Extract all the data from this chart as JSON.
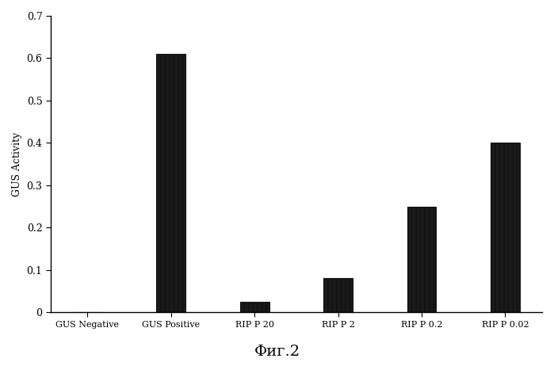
{
  "categories": [
    "GUS Negative",
    "GUS Positive",
    "RIP P 20",
    "RIP P 2",
    "RIP P 0.2",
    "RIP P 0.02"
  ],
  "values": [
    0.0,
    0.61,
    0.025,
    0.08,
    0.25,
    0.4
  ],
  "bar_color": "#111111",
  "ylabel": "GUS Activity",
  "ylim": [
    0,
    0.7
  ],
  "yticks": [
    0,
    0.1,
    0.2,
    0.3,
    0.4,
    0.5,
    0.6,
    0.7
  ],
  "caption": "Фиг.2",
  "background_color": "#ffffff",
  "bar_width": 0.35,
  "figsize": [
    6.99,
    4.62
  ],
  "dpi": 100
}
